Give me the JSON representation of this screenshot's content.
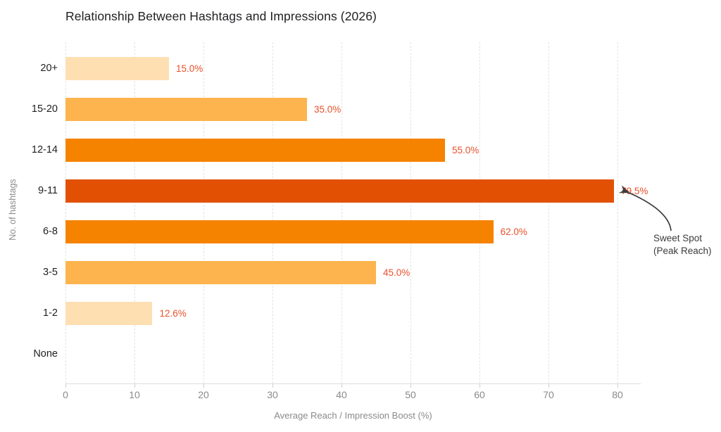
{
  "chart_data": {
    "type": "bar",
    "orientation": "horizontal",
    "title": "Relationship Between Hashtags and Impressions (2026)",
    "xlabel": "Average Reach / Impression Boost (%)",
    "ylabel": "No. of hashtags",
    "categories": [
      "20+",
      "15-20",
      "12-14",
      "9-11",
      "6-8",
      "3-5",
      "1-2",
      "None"
    ],
    "values": [
      15.0,
      35.0,
      55.0,
      79.5,
      62.0,
      45.0,
      12.6,
      0
    ],
    "value_labels": [
      "15.0%",
      "35.0%",
      "55.0%",
      "79.5%",
      "62.0%",
      "45.0%",
      "12.6%",
      ""
    ],
    "bar_colors": [
      "#FEDFB2",
      "#FDB44E",
      "#F58300",
      "#E25103",
      "#F58300",
      "#FDB44E",
      "#FEDFB2",
      null
    ],
    "xlim": [
      0,
      80
    ],
    "xticks": [
      0,
      10,
      20,
      30,
      40,
      50,
      60,
      70,
      80
    ],
    "grid": true,
    "legend": false,
    "annotation": {
      "line1": "Sweet Spot",
      "line2": "(Peak Reach)",
      "target_category": "9-11",
      "target_value": 79.5
    },
    "colors": {
      "value_label": "#E8502C",
      "grid": "#E3E3E3",
      "axis_line": "#DCDCDC",
      "tick_label": "#8A8A8A",
      "axis_title": "#8A8A8A",
      "category_label": "#212121",
      "title": "#202124",
      "annotation_text": "#3C3C3C",
      "annotation_arrow": "#3C3C3C"
    }
  }
}
